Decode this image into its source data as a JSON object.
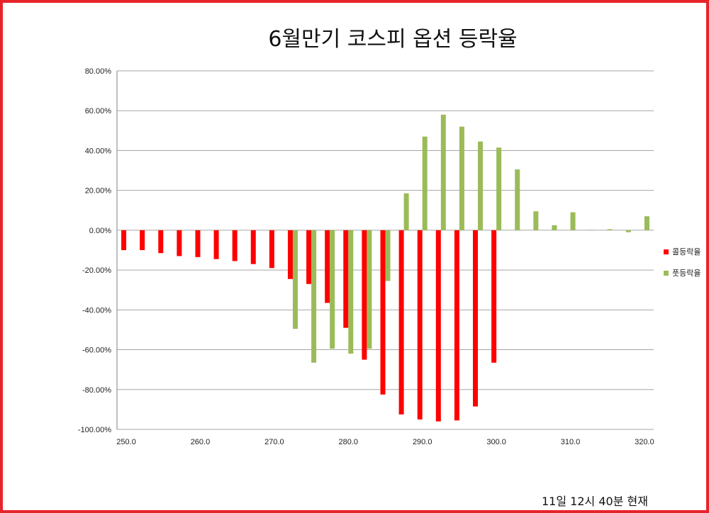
{
  "chart_data": {
    "type": "bar",
    "title": "6월만기 코스피 옵션 등락율",
    "timestamp": "11일 12시 40분 현재",
    "ylim": [
      -1.0,
      0.8
    ],
    "yticks": [
      "80.00%",
      "60.00%",
      "40.00%",
      "20.00%",
      "0.00%",
      "-20.00%",
      "-40.00%",
      "-60.00%",
      "-80.00%",
      "-100.00%"
    ],
    "ytick_values": [
      0.8,
      0.6,
      0.4,
      0.2,
      0.0,
      -0.2,
      -0.4,
      -0.6,
      -0.8,
      -1.0
    ],
    "xtick_labels": [
      "250.0",
      "260.0",
      "270.0",
      "280.0",
      "290.0",
      "300.0",
      "310.0",
      "320.0"
    ],
    "xtick_values": [
      250,
      260,
      270,
      280,
      290,
      300,
      310,
      320
    ],
    "grid": true,
    "legend_position": "right",
    "categories": [
      250.0,
      252.5,
      255.0,
      257.5,
      260.0,
      262.5,
      265.0,
      267.5,
      270.0,
      272.5,
      275.0,
      277.5,
      280.0,
      282.5,
      285.0,
      287.5,
      290.0,
      292.5,
      295.0,
      297.5,
      300.0,
      302.5,
      305.0,
      307.5,
      310.0,
      312.5,
      315.0,
      317.5,
      320.0
    ],
    "series": [
      {
        "name": "콜등락율",
        "color": "#ff0000",
        "values": [
          -0.1,
          -0.1,
          -0.115,
          -0.13,
          -0.135,
          -0.145,
          -0.155,
          -0.17,
          -0.19,
          -0.245,
          -0.27,
          -0.365,
          -0.49,
          -0.65,
          -0.825,
          -0.925,
          -0.95,
          -0.96,
          -0.955,
          -0.885,
          -0.665,
          null,
          null,
          null,
          null,
          null,
          null,
          null,
          null
        ]
      },
      {
        "name": "풋등락율",
        "color": "#9bbb59",
        "values": [
          null,
          null,
          null,
          null,
          null,
          null,
          null,
          null,
          null,
          -0.495,
          -0.665,
          -0.595,
          -0.62,
          -0.595,
          -0.255,
          0.185,
          0.47,
          0.58,
          0.52,
          0.445,
          0.415,
          0.305,
          0.095,
          0.025,
          0.09,
          0.0,
          0.005,
          -0.01,
          0.07
        ]
      }
    ]
  }
}
